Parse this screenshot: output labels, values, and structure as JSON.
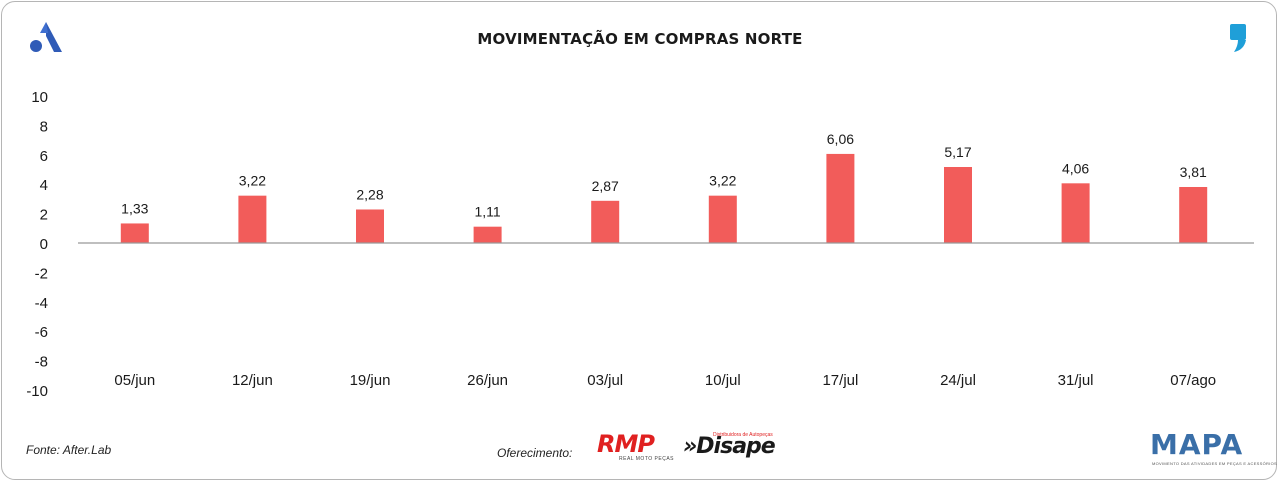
{
  "header": {
    "title": "MOVIMENTAÇÃO EM COMPRAS NORTE",
    "left_logo_icon": "stylized-a-logo-icon",
    "right_logo_icon": "quote-mark-logo-icon"
  },
  "footer": {
    "source": "Fonte: After.Lab",
    "sponsor_label": "Oferecimento:",
    "sponsors": [
      {
        "name": "RMP",
        "tagline": "REAL MOTO PEÇAS"
      },
      {
        "name": "»Disape",
        "tagline": "Distribuidora de Autopeças"
      }
    ],
    "brand": {
      "name": "MAPA",
      "tagline": "MOVIMENTO DAS ATIVIDADES EM PEÇAS E ACESSÓRIOS"
    }
  },
  "colors": {
    "bar": "#f25c5a",
    "axis": "#999999",
    "text": "#1a1a1a"
  },
  "chart_data": {
    "type": "bar",
    "title": "MOVIMENTAÇÃO EM COMPRAS NORTE",
    "categories": [
      "05/jun",
      "12/jun",
      "19/jun",
      "26/jun",
      "03/jul",
      "10/jul",
      "17/jul",
      "24/jul",
      "31/jul",
      "07/ago"
    ],
    "values": [
      1.33,
      3.22,
      2.28,
      1.11,
      2.87,
      3.22,
      6.06,
      5.17,
      4.06,
      3.81
    ],
    "data_labels": [
      "1,33",
      "3,22",
      "2,28",
      "1,11",
      "2,87",
      "3,22",
      "6,06",
      "5,17",
      "4,06",
      "3,81"
    ],
    "yticks": [
      "10",
      "8",
      "6",
      "4",
      "2",
      "0",
      "-2",
      "-4",
      "-6",
      "-8",
      "-10"
    ],
    "ytick_values": [
      10,
      8,
      6,
      4,
      2,
      0,
      -2,
      -4,
      -6,
      -8,
      -10
    ],
    "ylim": [
      -10,
      10
    ],
    "xlabel": "",
    "ylabel": "",
    "grid": false,
    "legend": "none"
  }
}
